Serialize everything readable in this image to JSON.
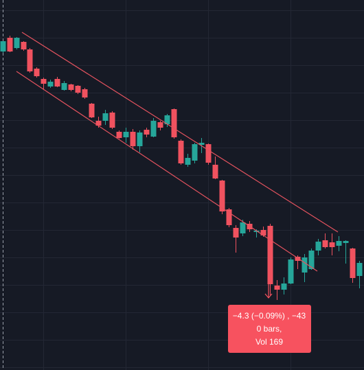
{
  "tooltip": {
    "lines": [
      "−4.3 (−0.09%) , −43",
      "0 bars,",
      "Vol 169"
    ]
  }
}
